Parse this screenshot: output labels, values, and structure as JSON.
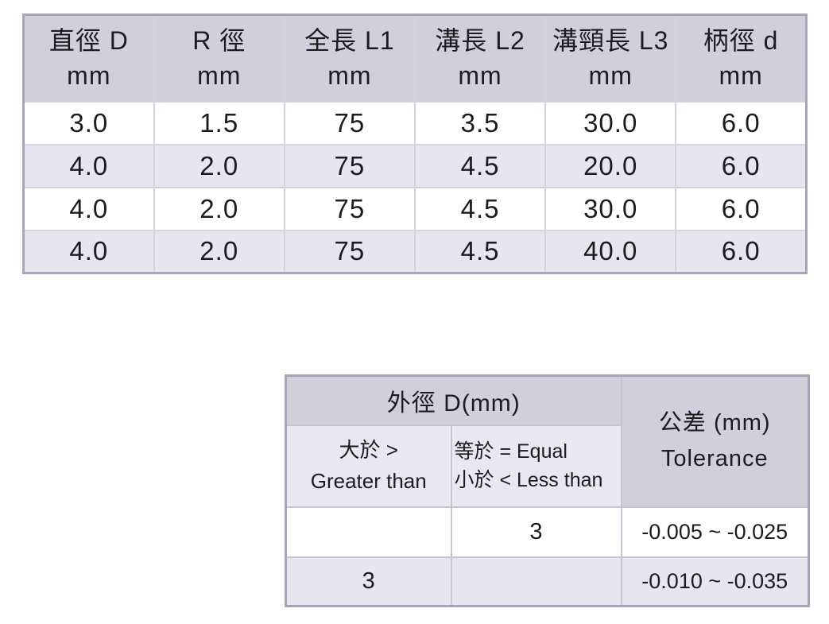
{
  "colors": {
    "page_bg": "#ffffff",
    "header_fill": "#d2cfdc",
    "stripe_fill": "#e7e5ee",
    "subheader_fill": "#e9e7ef",
    "outer_border": "#a9a5b9",
    "inner_border_light": "#d6d3e0",
    "inner_border_dark": "#c6c3d2",
    "text": "#1c1c1e"
  },
  "spec_table": {
    "columns": [
      {
        "line1": "直徑 D",
        "line2": "mm"
      },
      {
        "line1": "R 徑",
        "line2": "mm"
      },
      {
        "line1": "全長 L1",
        "line2": "mm"
      },
      {
        "line1": "溝長 L2",
        "line2": "mm"
      },
      {
        "line1": "溝頸長 L3",
        "line2": "mm"
      },
      {
        "line1": "柄徑 d",
        "line2": "mm"
      }
    ],
    "rows": [
      [
        "3.0",
        "1.5",
        "75",
        "3.5",
        "30.0",
        "6.0"
      ],
      [
        "4.0",
        "2.0",
        "75",
        "4.5",
        "20.0",
        "6.0"
      ],
      [
        "4.0",
        "2.0",
        "75",
        "4.5",
        "30.0",
        "6.0"
      ],
      [
        "4.0",
        "2.0",
        "75",
        "4.5",
        "40.0",
        "6.0"
      ]
    ]
  },
  "tolerance_table": {
    "outer_diameter_header": "外徑 D(mm)",
    "tolerance_header": {
      "line1": "公差 (mm)",
      "line2": "Tolerance"
    },
    "greater_header": {
      "line1": "大於 >",
      "line2": "Greater than"
    },
    "equal_less_header": {
      "line1": "等於 = Equal",
      "line2": "小於 < Less than"
    },
    "rows": [
      {
        "greater": "",
        "equal_less": "3",
        "tolerance": "-0.005 ~ -0.025"
      },
      {
        "greater": "3",
        "equal_less": "",
        "tolerance": "-0.010 ~ -0.035"
      }
    ]
  }
}
